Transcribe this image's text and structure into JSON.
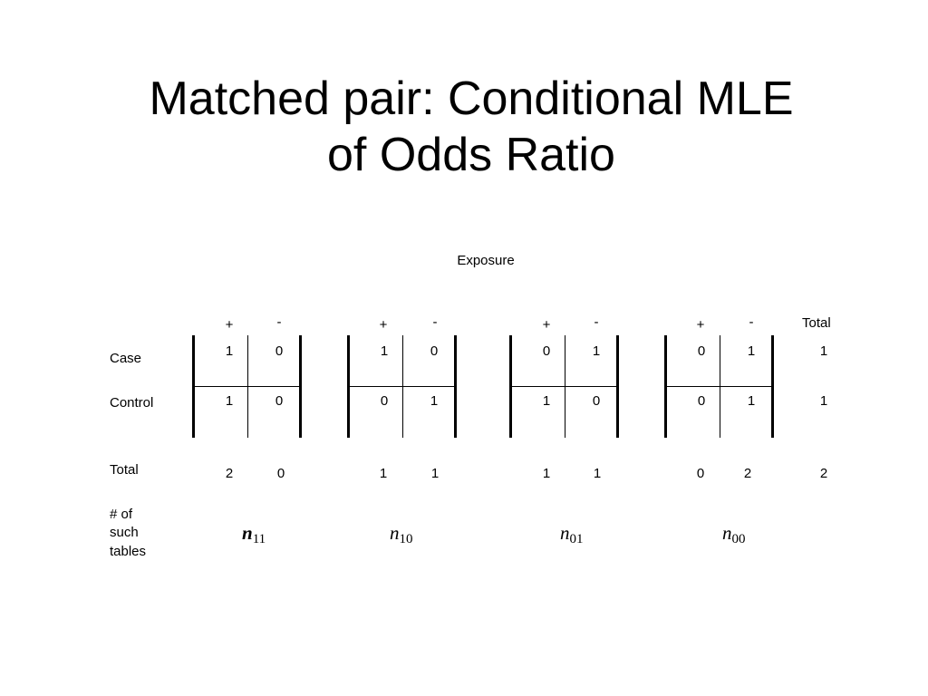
{
  "title": {
    "line1": "Matched pair: Conditional MLE",
    "line2": "of Odds Ratio"
  },
  "exposure_label": "Exposure",
  "column_headers": {
    "plus": "+",
    "minus": "-",
    "total": "Total"
  },
  "row_labels": {
    "case": "Case",
    "control": "Control",
    "total": "Total",
    "count_line1": "# of",
    "count_line2": "such",
    "count_line3": "tables"
  },
  "tables": [
    {
      "case": [
        "1",
        "0"
      ],
      "control": [
        "1",
        "0"
      ],
      "totals": [
        "2",
        "0"
      ],
      "count_base": "n",
      "count_sub": "11"
    },
    {
      "case": [
        "1",
        "0"
      ],
      "control": [
        "0",
        "1"
      ],
      "totals": [
        "1",
        "1"
      ],
      "count_base": "n",
      "count_sub": "10"
    },
    {
      "case": [
        "0",
        "1"
      ],
      "control": [
        "1",
        "0"
      ],
      "totals": [
        "1",
        "1"
      ],
      "count_base": "n",
      "count_sub": "01"
    },
    {
      "case": [
        "0",
        "1"
      ],
      "control": [
        "0",
        "1"
      ],
      "totals": [
        "0",
        "2"
      ],
      "count_base": "n",
      "count_sub": "00"
    }
  ],
  "row_totals": {
    "case": "1",
    "control": "1",
    "total": "2"
  }
}
